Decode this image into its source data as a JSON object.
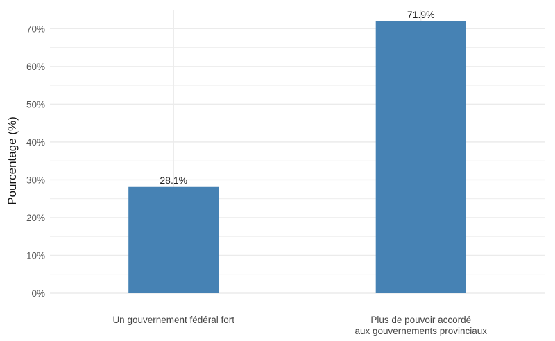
{
  "chart_data": {
    "type": "bar",
    "title": "",
    "xlabel": "",
    "ylabel": "Pourcentage (%)",
    "categories": [
      [
        "Un gouvernement fédéral fort"
      ],
      [
        "Plus de pouvoir accordé",
        "aux gouvernements provinciaux"
      ]
    ],
    "values": [
      28.1,
      71.9
    ],
    "value_labels": [
      "28.1%",
      "71.9%"
    ],
    "ylim": [
      0,
      75
    ],
    "yticks": [
      0,
      10,
      20,
      30,
      40,
      50,
      60,
      70
    ],
    "ytick_labels": [
      "0%",
      "10%",
      "20%",
      "30%",
      "40%",
      "50%",
      "60%",
      "70%"
    ],
    "grid": true,
    "bar_color": "#4682B4",
    "grid_color": "#EBEBEB"
  }
}
